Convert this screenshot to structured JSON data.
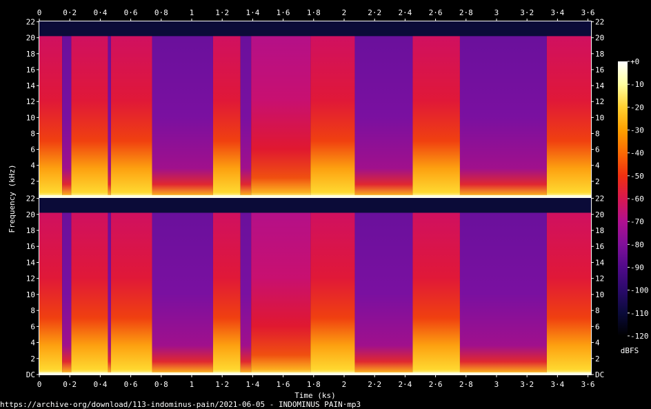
{
  "chart_data": {
    "type": "heatmap",
    "title": "",
    "xlabel": "Time (ks)",
    "ylabel": "Frequency (kHz)",
    "xlim": [
      0,
      3.62
    ],
    "x_ticks": [
      "0",
      "0·2",
      "0·4",
      "0·6",
      "0·8",
      "1",
      "1·2",
      "1·4",
      "1·6",
      "1·8",
      "2",
      "2·2",
      "2·4",
      "2·6",
      "2·8",
      "3",
      "3·2",
      "3·4",
      "3·6"
    ],
    "x_tick_values": [
      0,
      0.2,
      0.4,
      0.6,
      0.8,
      1.0,
      1.2,
      1.4,
      1.6,
      1.8,
      2.0,
      2.2,
      2.4,
      2.6,
      2.8,
      3.0,
      3.2,
      3.4,
      3.6
    ],
    "channels": [
      {
        "name": "top",
        "y_ticks": [
          "2",
          "4",
          "6",
          "8",
          "10",
          "12",
          "14",
          "16",
          "18",
          "20",
          "22"
        ],
        "y_tick_values": [
          2,
          4,
          6,
          8,
          10,
          12,
          14,
          16,
          18,
          20,
          22
        ]
      },
      {
        "name": "bottom",
        "y_ticks": [
          "DC",
          "2",
          "4",
          "6",
          "8",
          "10",
          "12",
          "14",
          "16",
          "18",
          "20",
          "22"
        ],
        "y_tick_values": [
          0,
          2,
          4,
          6,
          8,
          10,
          12,
          14,
          16,
          18,
          20,
          22
        ]
      }
    ],
    "ylim": [
      0,
      22.05
    ],
    "cutoff_khz": 20.2,
    "segments": [
      {
        "t0": 0.0,
        "t1": 0.15,
        "level": "loud"
      },
      {
        "t0": 0.15,
        "t1": 0.21,
        "level": "quiet"
      },
      {
        "t0": 0.21,
        "t1": 0.45,
        "level": "loud"
      },
      {
        "t0": 0.45,
        "t1": 0.47,
        "level": "quiet"
      },
      {
        "t0": 0.47,
        "t1": 0.74,
        "level": "loud"
      },
      {
        "t0": 0.74,
        "t1": 1.14,
        "level": "quiet"
      },
      {
        "t0": 1.14,
        "t1": 1.32,
        "level": "loud"
      },
      {
        "t0": 1.32,
        "t1": 1.39,
        "level": "quiet"
      },
      {
        "t0": 1.39,
        "t1": 1.78,
        "level": "mid"
      },
      {
        "t0": 1.78,
        "t1": 2.07,
        "level": "loud"
      },
      {
        "t0": 2.07,
        "t1": 2.45,
        "level": "quiet"
      },
      {
        "t0": 2.45,
        "t1": 2.76,
        "level": "loud"
      },
      {
        "t0": 2.76,
        "t1": 3.33,
        "level": "quiet"
      },
      {
        "t0": 3.33,
        "t1": 3.62,
        "level": "loud"
      }
    ],
    "colorbar": {
      "label": "dBFS",
      "ticks": [
        "+0",
        "-10",
        "-20",
        "-30",
        "-40",
        "-50",
        "-60",
        "-70",
        "-80",
        "-90",
        "-100",
        "-110",
        "-120"
      ],
      "tick_values": [
        0,
        -10,
        -20,
        -30,
        -40,
        -50,
        -60,
        -70,
        -80,
        -90,
        -100,
        -110,
        -120
      ],
      "colors": [
        "#000000",
        "#0a0a3a",
        "#2a0a6a",
        "#500a8a",
        "#80109a",
        "#b01090",
        "#d81850",
        "#f03010",
        "#fb6a04",
        "#fda000",
        "#ffd030",
        "#ffffa0",
        "#ffffff"
      ]
    }
  },
  "footer": {
    "source": "https://archive·org/download/113-indominus-pain/2021-06-05 - INDOMINUS PAIN·mp3"
  }
}
